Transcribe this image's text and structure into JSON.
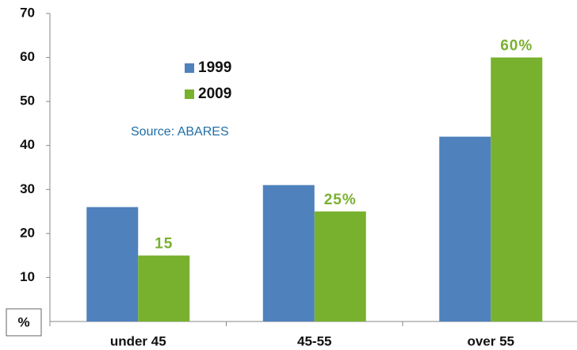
{
  "chart_data": {
    "type": "bar",
    "categories": [
      "under 45",
      "45-55",
      "over 55"
    ],
    "series": [
      {
        "name": "1999",
        "color": "#4f81bd",
        "values": [
          26,
          31,
          42
        ]
      },
      {
        "name": "2009",
        "color": "#78b12e",
        "values": [
          15,
          25,
          60
        ],
        "value_labels": [
          "15",
          "25%",
          "60%"
        ]
      }
    ],
    "ylim": [
      0,
      70
    ],
    "yticks": [
      10,
      20,
      30,
      40,
      50,
      60,
      70
    ],
    "y_label": "%",
    "annotation": "Source: ABARES",
    "grid": false
  }
}
